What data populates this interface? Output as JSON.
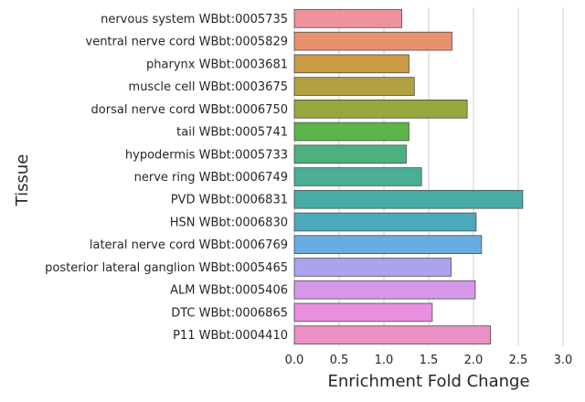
{
  "chart_data": {
    "type": "bar",
    "orientation": "horizontal",
    "xlabel": "Enrichment Fold Change",
    "ylabel": "Tissue",
    "xlim": [
      0.0,
      3.0
    ],
    "xticks": [
      "0.0",
      "0.5",
      "1.0",
      "1.5",
      "2.0",
      "2.5",
      "3.0"
    ],
    "grid": true,
    "categories": [
      "nervous system WBbt:0005735",
      "ventral nerve cord WBbt:0005829",
      "pharynx WBbt:0003681",
      "muscle cell WBbt:0003675",
      "dorsal nerve cord WBbt:0006750",
      "tail WBbt:0005741",
      "hypodermis WBbt:0005733",
      "nerve ring WBbt:0006749",
      "PVD WBbt:0006831",
      "HSN WBbt:0006830",
      "lateral nerve cord WBbt:0006769",
      "posterior lateral ganglion WBbt:0005465",
      "ALM WBbt:0005406",
      "DTC WBbt:0006865",
      "P11 WBbt:0004410"
    ],
    "values": [
      1.2,
      1.76,
      1.28,
      1.34,
      1.93,
      1.28,
      1.25,
      1.42,
      2.55,
      2.03,
      2.09,
      1.75,
      2.02,
      1.54,
      2.19
    ],
    "colors": [
      "#f0929b",
      "#e8916f",
      "#cc9a45",
      "#b3a042",
      "#95a83d",
      "#5db54a",
      "#4bb17d",
      "#49ae95",
      "#49aba6",
      "#4aa9bb",
      "#6aacdf",
      "#aaa4ee",
      "#d598e9",
      "#ea8ee0",
      "#eb90c2"
    ],
    "bar_edge_color": "#4d4d4d"
  }
}
